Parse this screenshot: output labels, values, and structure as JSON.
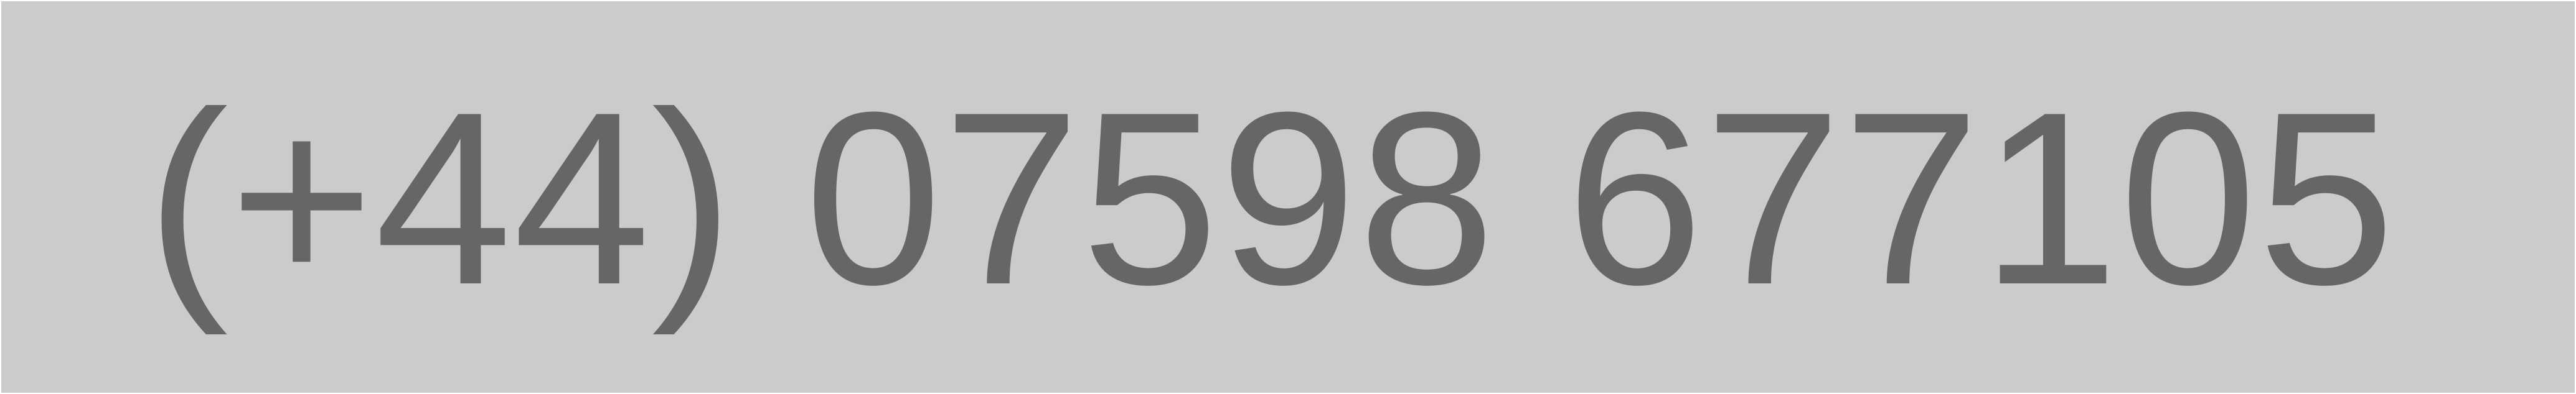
{
  "phone": {
    "number": "(+44) 07598 677105"
  },
  "colors": {
    "background": "#cbcbcb",
    "text": "#666666"
  }
}
